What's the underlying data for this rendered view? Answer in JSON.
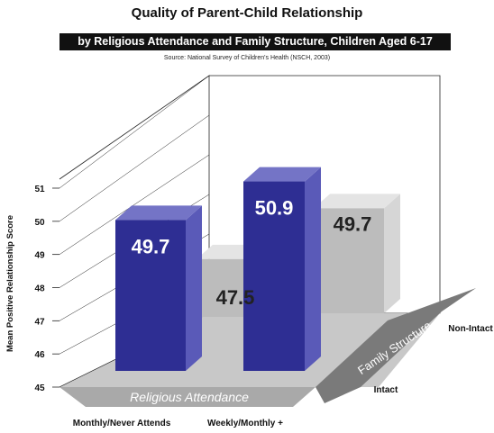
{
  "title": "Quality of Parent-Child Relationship",
  "subtitle": "by  Religious Attendance and Family Structure, Children Aged 6-17",
  "source": "Source: National Survey of Children's Health (NSCH, 2003)",
  "colors": {
    "intact": "#2e2e93",
    "non_intact": "#bcbcbc",
    "floor": "#c8c8c8",
    "dark_band": "#7a7a7a"
  },
  "chart_data": {
    "type": "bar",
    "title": "Quality of Parent-Child Relationship",
    "subtitle": "by  Religious Attendance and Family Structure, Children Aged 6-17",
    "xlabel": "Religious Attendance",
    "ylabel": "Mean Positive Relationship Score",
    "zlabel": "Family Structure",
    "categories": [
      "Monthly/Never Attends",
      "Weekly/Monthly +"
    ],
    "series": [
      {
        "name": "Intact",
        "values": [
          49.7,
          50.9
        ]
      },
      {
        "name": "Non-Intact",
        "values": [
          47.5,
          49.7
        ]
      }
    ],
    "value_labels": [
      [
        "49.7",
        "50.9"
      ],
      [
        "47.5",
        "49.7"
      ]
    ],
    "yticks": [
      "45",
      "46",
      "47",
      "48",
      "49",
      "50",
      "51"
    ],
    "ylim": [
      45,
      51
    ],
    "grid": false,
    "legend": "none"
  }
}
